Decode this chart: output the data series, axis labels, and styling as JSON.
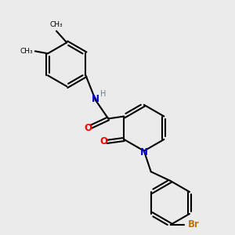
{
  "bg_color": "#ebebeb",
  "bond_color": "#000000",
  "N_color": "#0000cc",
  "O_color": "#ff0000",
  "Br_color": "#bb7700",
  "H_color": "#708090",
  "font_size_atom": 8.5,
  "xlim": [
    0,
    10
  ],
  "ylim": [
    0,
    10
  ],
  "figsize": [
    3.0,
    3.0
  ],
  "dpi": 100
}
